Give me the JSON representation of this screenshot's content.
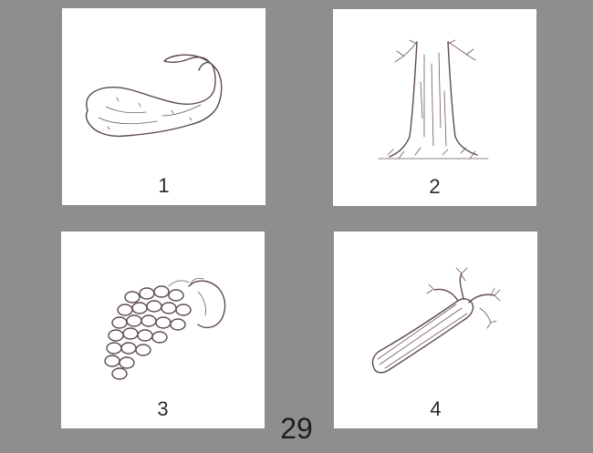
{
  "cards": [
    {
      "label": "1",
      "icon": "gourd-icon"
    },
    {
      "label": "2",
      "icon": "tree-trunk-icon"
    },
    {
      "label": "3",
      "icon": "grapes-icon"
    },
    {
      "label": "4",
      "icon": "celery-icon"
    }
  ],
  "page_number": "29",
  "colors": {
    "background": "#8f8e8c",
    "card": "#ffffff",
    "ink": "#5e4a4a"
  }
}
